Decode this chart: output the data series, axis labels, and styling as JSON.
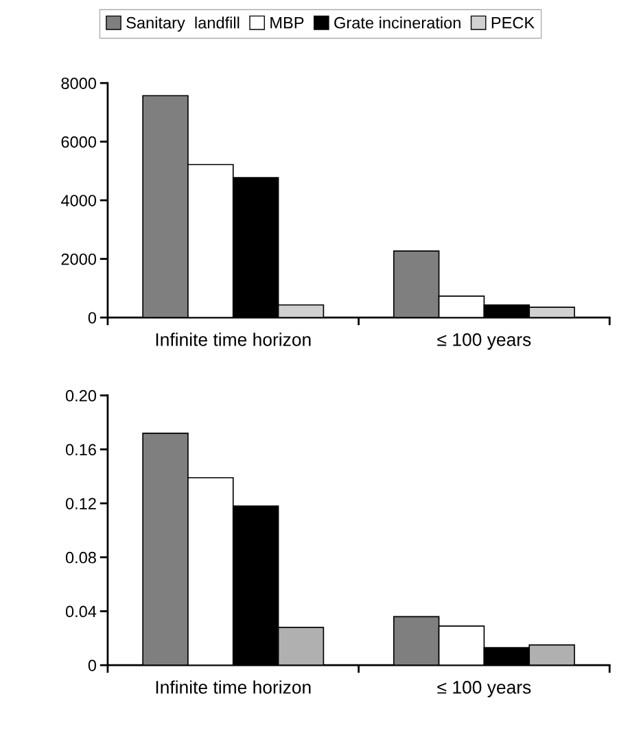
{
  "chart_data": [
    {
      "type": "bar",
      "categories": [
        "Infinite time horizon",
        "≤ 100 years"
      ],
      "legend": "top",
      "ylim": [
        0,
        8000
      ],
      "yticks": [
        0,
        2000,
        4000,
        6000,
        8000
      ],
      "series": [
        {
          "name": "Sanitary  landfill",
          "color": "#7f7f7f",
          "values": [
            7570,
            2270
          ]
        },
        {
          "name": "MBP",
          "color": "#ffffff",
          "values": [
            5220,
            730
          ]
        },
        {
          "name": "Grate incineration",
          "color": "#000000",
          "values": [
            4770,
            430
          ]
        },
        {
          "name": "PECK",
          "color": "#d0d0d0",
          "values": [
            430,
            350
          ]
        }
      ]
    },
    {
      "type": "bar",
      "categories": [
        "Infinite time horizon",
        "≤ 100 years"
      ],
      "ylim": [
        0,
        0.2
      ],
      "yticks": [
        {
          "value": 0,
          "label": "0"
        },
        {
          "value": 0.04,
          "label": "0.04"
        },
        {
          "value": 0.08,
          "label": "0.08"
        },
        {
          "value": 0.12,
          "label": "0.12"
        },
        {
          "value": 0.16,
          "label": "0.16"
        },
        {
          "value": 0.2,
          "label": "0.20"
        }
      ],
      "series": [
        {
          "color": "#7f7f7f",
          "values": [
            0.172,
            0.036
          ]
        },
        {
          "color": "#ffffff",
          "values": [
            0.139,
            0.029
          ]
        },
        {
          "color": "#000000",
          "values": [
            0.118,
            0.013
          ]
        },
        {
          "color": "#b0b0b0",
          "values": [
            0.028,
            0.015
          ]
        }
      ]
    }
  ]
}
